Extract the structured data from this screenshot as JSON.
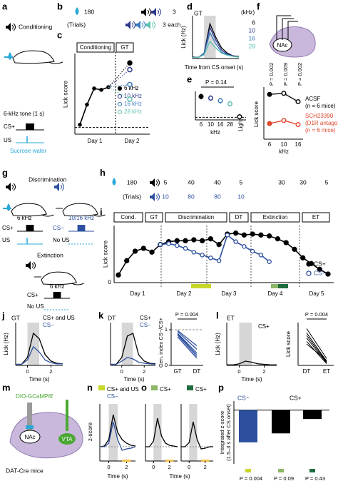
{
  "figure": {
    "a": {
      "label": "a",
      "title": "Conditioning",
      "tone": "6-kHz tone (1 s)",
      "cs": "CS+",
      "us": "US",
      "reward": "Sucrose water"
    },
    "b": {
      "label": "b",
      "trials_us": 180,
      "trials_cs": 3,
      "trials": "(Trials)",
      "each": "3 each"
    },
    "c": {
      "label": "c",
      "phase_1": "Conditioning",
      "phase_2": "GT",
      "ylabel": "Lick score",
      "days": [
        "Day 1",
        "Day 2"
      ],
      "ylim": [
        -0.5,
        5.5
      ],
      "conditioning": {
        "color": "#000000",
        "values": [
          0.2,
          1.7,
          2.9,
          2.8,
          3.0
        ]
      },
      "series": [
        {
          "name": "6 kHz",
          "color": "#000000",
          "value": 4.8
        },
        {
          "name": "10 kHz",
          "color": "#2d3a8c",
          "value": 4.3
        },
        {
          "name": "16 kHz",
          "color": "#3a7bbf",
          "value": 3.2
        },
        {
          "name": "28 kHz",
          "color": "#5fc0b0",
          "value": 2.1
        }
      ]
    },
    "d": {
      "label": "d",
      "title": "GT",
      "legend_title": "(kHz)",
      "ylabel": "Lick (Hz)",
      "xlabel": "Time from CS onset (s)",
      "time": [
        -1,
        -0.5,
        0,
        0.5,
        1,
        1.5,
        2,
        2.5,
        3
      ],
      "xlim": [
        -1,
        3
      ],
      "ylim": [
        0,
        8
      ],
      "series": [
        {
          "name": "6",
          "color": "#000000",
          "values": [
            0.3,
            0.2,
            1.0,
            6.5,
            4.0,
            2.0,
            1.0,
            0.5,
            0.4
          ]
        },
        {
          "name": "10",
          "color": "#2d3a8c",
          "values": [
            0.3,
            0.2,
            1.0,
            5.8,
            3.5,
            1.6,
            0.8,
            0.5,
            0.3
          ]
        },
        {
          "name": "16",
          "color": "#3a7bbf",
          "values": [
            0.2,
            0.2,
            0.9,
            4.8,
            2.8,
            1.2,
            0.7,
            0.4,
            0.3
          ]
        },
        {
          "name": "28",
          "color": "#5fc0b0",
          "values": [
            0.2,
            0.2,
            0.7,
            3.2,
            2.0,
            1.0,
            0.6,
            0.4,
            0.3
          ]
        }
      ]
    },
    "e": {
      "label": "e",
      "stat": "P = 0.14",
      "categories": [
        "6",
        "10",
        "16",
        "28",
        "Light"
      ],
      "xlabel": "kHz",
      "values": [
        4.0,
        3.7,
        3.2,
        2.6,
        0.1
      ],
      "colors": [
        "#000000",
        "#2d3a8c",
        "#3a7bbf",
        "#5fc0b0",
        "#000000"
      ],
      "ylim": [
        -0.5,
        5
      ]
    },
    "f": {
      "label": "f",
      "region": "NAc",
      "p_values": [
        "P = 0.002",
        "P = 0.009",
        "P = 0.002"
      ],
      "categories": [
        "6",
        "10",
        "16"
      ],
      "xlabel": "kHz",
      "ylabel": "Lick score",
      "ylim": [
        0,
        5
      ],
      "series": [
        {
          "name": "ACSF",
          "note": "(n = 6 mice)",
          "color": "#000000",
          "values": [
            4.3,
            4.4,
            3.6
          ]
        },
        {
          "name": "SCH23390",
          "subtitle": "(D1R antagonist)",
          "note": "(n = 6 mice)",
          "color": "#e0452a",
          "values": [
            1.5,
            1.8,
            1.4
          ]
        }
      ]
    },
    "g": {
      "label": "g",
      "title": "Discrimination",
      "tone_plus": "6 kHz",
      "tone_minus": "10/16 kHz",
      "cs_plus": "CS+",
      "cs_minus": "CS−",
      "us": "US",
      "no_us": "No US",
      "extinction": "Extinction",
      "ext_tone": "6 kHz",
      "ext_cs": "CS+",
      "ext_no_us": "No US"
    },
    "h": {
      "label": "h",
      "us_trials": [
        180,
        5,
        40,
        40,
        5,
        30,
        30,
        5
      ],
      "trials": "(Trials)",
      "cs_minus_trials": [
        10,
        80,
        80,
        10
      ]
    },
    "i": {
      "label": "i",
      "phases": [
        "Cond.",
        "GT",
        "Discrimination",
        "DT",
        "Extinction",
        "ET"
      ],
      "ylabel": "Lick score",
      "yticks": [
        0
      ],
      "ylim": [
        0,
        6
      ],
      "days": [
        "Day 1",
        "Day 2",
        "Day 3",
        "Day 4",
        "Day 5"
      ],
      "series": [
        {
          "name": "CS+",
          "color": "#000000",
          "values": [
            0.8,
            2.3,
            3.3,
            3.6,
            3.2,
            4.0,
            4.3,
            4.4,
            4.4,
            4.5,
            4.4,
            4.6,
            4.0,
            5.1,
            5.2,
            5.0,
            5.1,
            5.0,
            4.9,
            4.6,
            4.2,
            3.5,
            2.6,
            2.0,
            1.4,
            0.9
          ]
        },
        {
          "name": "CS−",
          "color": "#2c4f9e",
          "values": [
            null,
            null,
            null,
            null,
            null,
            4.0,
            4.1,
            3.9,
            3.6,
            3.2,
            2.9,
            2.6,
            2.3,
            5.0,
            4.3,
            3.8,
            3.3,
            2.9,
            2.2,
            null,
            null,
            null,
            null,
            null,
            null,
            null
          ]
        }
      ]
    },
    "j": {
      "label": "j",
      "title": "GT",
      "ylabel": "Lick (Hz)",
      "xlabel": "Time (s)",
      "xticks": [
        0,
        2
      ],
      "time": [
        -1,
        -0.5,
        0,
        0.5,
        1,
        1.5,
        2,
        2.5,
        3
      ],
      "xlim": [
        -1,
        3
      ],
      "ylim": [
        0,
        8
      ],
      "series": [
        {
          "name": "CS+ and US",
          "color": "#000000",
          "values": [
            0.2,
            0.2,
            1.5,
            6.0,
            5.0,
            2.0,
            0.8,
            0.4,
            0.3
          ]
        },
        {
          "name": "CS−",
          "color": "#2c4f9e",
          "values": [
            0.2,
            0.2,
            1.0,
            3.5,
            2.5,
            1.0,
            0.5,
            0.3,
            0.3
          ]
        }
      ]
    },
    "k": {
      "label": "k",
      "title": "DT",
      "xticks": [
        0,
        2
      ],
      "time": [
        -1,
        -0.5,
        0,
        0.5,
        1,
        1.5,
        2,
        2.5,
        3
      ],
      "xlim": [
        -1,
        3
      ],
      "ylim": [
        0,
        8
      ],
      "series": [
        {
          "name": "CS+",
          "color": "#000000",
          "values": [
            0.2,
            0.2,
            1.5,
            5.5,
            6.0,
            2.0,
            0.8,
            0.4,
            0.3
          ]
        },
        {
          "name": "CS−",
          "color": "#2c4f9e",
          "values": [
            0.2,
            0.2,
            0.8,
            1.5,
            1.2,
            0.6,
            0.4,
            0.3,
            0.2
          ]
        }
      ],
      "inset": {
        "stat": "P = 0.004",
        "ylabel": "Gen. index CS−/CS+",
        "categories": [
          "GT",
          "DT"
        ],
        "yticks": [
          0,
          1
        ],
        "ylim": [
          0,
          1.2
        ],
        "color": "#2c4f9e",
        "lines": [
          [
            0.98,
            0.55
          ],
          [
            0.95,
            0.45
          ],
          [
            0.9,
            0.35
          ],
          [
            0.88,
            0.3
          ],
          [
            0.85,
            0.25
          ],
          [
            0.8,
            0.2
          ]
        ]
      }
    },
    "l": {
      "label": "l",
      "title": "ET",
      "ylabel": "Lick (Hz)",
      "xlabel": "Time (s)",
      "xticks": [
        0,
        2
      ],
      "time": [
        -1,
        -0.5,
        0,
        0.5,
        1,
        1.5,
        2,
        2.5,
        3
      ],
      "xlim": [
        -1,
        3
      ],
      "ylim": [
        0,
        8
      ],
      "series": [
        {
          "name": "CS+",
          "color": "#000000",
          "values": [
            0.1,
            0.1,
            0.3,
            0.8,
            0.6,
            0.3,
            0.2,
            0.1,
            0.1
          ]
        }
      ],
      "inset": {
        "stat": "P = 0.004",
        "ylabel": "Lick score",
        "categories": [
          "DT",
          "ET"
        ],
        "ylim": [
          0,
          5
        ],
        "color": "#000000",
        "lines": [
          [
            4.3,
            0.8
          ],
          [
            3.8,
            0.5
          ],
          [
            3.5,
            0.4
          ],
          [
            3.2,
            0.3
          ],
          [
            2.8,
            0.2
          ],
          [
            2.5,
            0.6
          ]
        ]
      }
    },
    "m": {
      "label": "m",
      "virus": "DIO-GCaMP6f",
      "region_1": "NAc",
      "region_2": "VTA",
      "mice": "DAT-Cre mice"
    },
    "n": {
      "label": "n",
      "ylabel": "z-score",
      "xlabel": "Time (s)",
      "xticks": [
        0,
        2
      ],
      "time": [
        -1,
        -0.5,
        0,
        0.5,
        1,
        1.5,
        2,
        2.5,
        3
      ],
      "xlim": [
        -1,
        3
      ],
      "ylim": [
        -2,
        6
      ],
      "series": [
        {
          "name": "CS+ and US",
          "color": "#000000",
          "values": [
            0,
            0.1,
            1.0,
            4.5,
            2.0,
            1.0,
            0.5,
            0.2,
            0.1
          ]
        },
        {
          "name": "CS−",
          "color": "#2c4f9e",
          "values": [
            0,
            0,
            0.5,
            3.5,
            1.0,
            -0.5,
            -0.3,
            -0.2,
            0
          ]
        }
      ]
    },
    "o": {
      "label": "o",
      "xlabel": "Time (s)",
      "time": [
        -1,
        -0.5,
        0,
        0.5,
        1,
        1.5,
        2,
        2.5,
        3
      ],
      "xlim": [
        -1,
        3
      ],
      "ylim": [
        -2,
        6
      ],
      "panels": [
        {
          "title": "CS+",
          "xticks": [
            0,
            2
          ],
          "color": "#000000",
          "values": [
            0,
            0,
            0.8,
            4.0,
            1.5,
            0.5,
            0.2,
            0.1,
            0
          ]
        },
        {
          "title": "CS+",
          "xticks": [
            0,
            2
          ],
          "color": "#000000",
          "values": [
            0,
            0,
            0.6,
            3.5,
            1.0,
            -0.3,
            -0.2,
            0,
            0
          ]
        }
      ]
    },
    "p": {
      "label": "p",
      "groups": [
        "CS−",
        "CS+"
      ],
      "ylabel": [
        "Integrated z-score",
        "(1.5–3 s after CS onset)"
      ],
      "values": [
        -1.8,
        -1.3,
        -0.5
      ],
      "colors": [
        "#2c4f9e",
        "#000000",
        "#000000"
      ],
      "ylim": [
        -3,
        0.5
      ],
      "p_values": [
        "P = 0.004",
        "P = 0.09",
        "P = 0.43"
      ],
      "swatches": [
        "#c5d82a",
        "#8db865",
        "#1e6e3e"
      ]
    }
  }
}
